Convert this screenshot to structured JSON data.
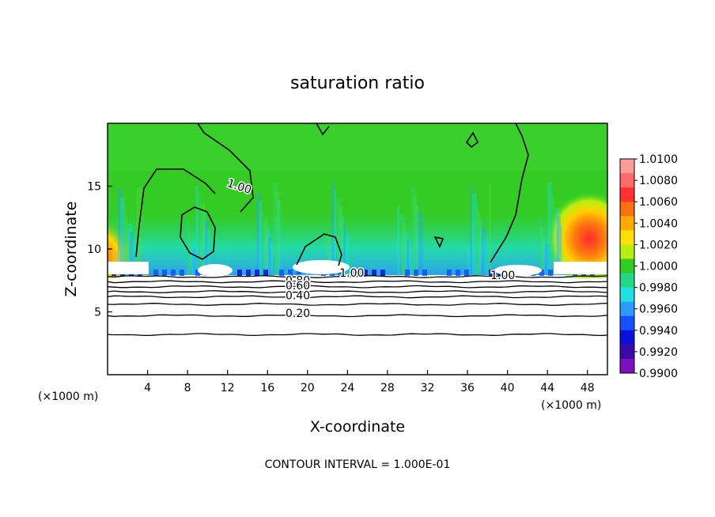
{
  "chart_data": {
    "type": "heatmap",
    "title": "saturation ratio",
    "xlabel": "X-coordinate",
    "ylabel": "Z-coordinate",
    "x_unit_left": "(×1000 m)",
    "x_unit_right": "(×1000 m)",
    "xlim": [
      0,
      50
    ],
    "ylim": [
      0,
      20
    ],
    "x_ticks": [
      4,
      8,
      12,
      16,
      20,
      24,
      28,
      32,
      36,
      40,
      44,
      48
    ],
    "y_ticks": [
      5,
      10,
      15
    ],
    "colorbar": {
      "labels": [
        "1.0100",
        "1.0080",
        "1.0060",
        "1.0040",
        "1.0020",
        "1.0000",
        "0.9980",
        "0.9960",
        "0.9940",
        "0.9920",
        "0.9900"
      ],
      "colors": [
        "#ff9a9a",
        "#ff6a6a",
        "#ff3030",
        "#ff6e10",
        "#ffaa00",
        "#ffe000",
        "#b8ef10",
        "#33cc22",
        "#22d68a",
        "#1ee0e0",
        "#2a9cff",
        "#1450ff",
        "#0a10d8",
        "#3a0aa8",
        "#7a10c0"
      ]
    },
    "contour_labels": [
      {
        "text": "1.00",
        "x": 11.9,
        "z": 15.0
      },
      {
        "text": "1.00",
        "x": 23.2,
        "z": 7.8
      },
      {
        "text": "1.00",
        "x": 38.3,
        "z": 7.6
      },
      {
        "text": "0.80",
        "x": 17.8,
        "z": 7.2
      },
      {
        "text": "0.60",
        "x": 17.8,
        "z": 6.8
      },
      {
        "text": "0.40",
        "x": 17.8,
        "z": 6.0
      },
      {
        "text": "0.20",
        "x": 17.8,
        "z": 4.6
      }
    ],
    "contour_levels_z": [
      3.2,
      4.7,
      5.6,
      6.2,
      6.6,
      7.0,
      7.4,
      7.8
    ],
    "footer": "CONTOUR INTERVAL = 1.000E-01"
  }
}
